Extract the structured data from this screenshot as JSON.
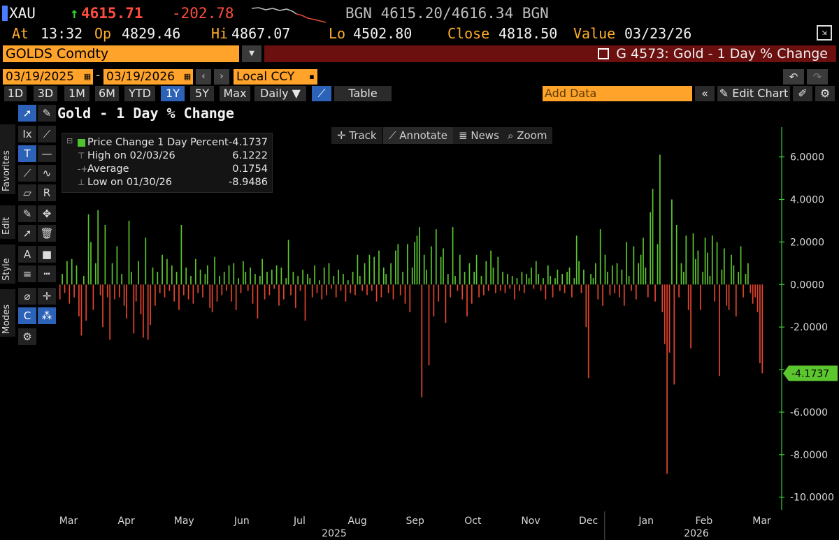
{
  "header": {
    "ticker": "XAU",
    "last": "4615.71",
    "change": "-202.78",
    "bid_ask": "BGN 4615.20/4616.34 BGN",
    "time_label": "At",
    "time": "13:32",
    "open_label": "Op",
    "open": "4829.46",
    "high_label": "Hi",
    "high": "4867.07",
    "low_label": "Lo",
    "low": "4502.80",
    "close_label": "Close",
    "close": "4818.50",
    "value_label": "Value",
    "value_date": "03/23/26"
  },
  "security": {
    "name": "GOLDS Comdty",
    "chart_title_bar": "G 4573: Gold - 1 Day % Change"
  },
  "range": {
    "start": "03/19/2025",
    "end": "03/19/2026",
    "currency": "Local CCY"
  },
  "periods": [
    {
      "label": "1D",
      "selected": false
    },
    {
      "label": "3D",
      "selected": false
    },
    {
      "label": "1M",
      "selected": false
    },
    {
      "label": "6M",
      "selected": false
    },
    {
      "label": "YTD",
      "selected": false
    },
    {
      "label": "1Y",
      "selected": true
    },
    {
      "label": "5Y",
      "selected": false
    },
    {
      "label": "Max",
      "selected": false
    }
  ],
  "frequency": "Daily",
  "table_label": "Table",
  "add_data_placeholder": "Add Data",
  "edit_chart_label": "Edit Chart",
  "side_tabs": [
    "Favorites",
    "Edit",
    "Style",
    "Modes"
  ],
  "chart_toolbar": [
    "Track",
    "Annotate",
    "News",
    "Zoom"
  ],
  "legend": {
    "series": {
      "label": "Price Change 1 Day Percent",
      "value": "-4.1737"
    },
    "high": {
      "label": "High on 02/03/26",
      "value": "6.1222"
    },
    "average": {
      "label": "Average",
      "value": "0.1754"
    },
    "low": {
      "label": "Low on 01/30/26",
      "value": "-8.9486"
    }
  },
  "colors": {
    "positive": "#5cc62f",
    "negative": "#e2452f",
    "accent": "#ffa32b",
    "last_value_tag": "#5cc62f"
  },
  "chart_data": {
    "type": "bar",
    "title": "Gold - 1 Day % Change",
    "x_axis": {
      "months": [
        "Mar",
        "Apr",
        "May",
        "Jun",
        "Jul",
        "Aug",
        "Sep",
        "Oct",
        "Nov",
        "Dec",
        "Jan",
        "Feb",
        "Mar"
      ],
      "years": [
        "2025",
        "2026"
      ]
    },
    "y_axis": {
      "ticks": [
        "6.0000",
        "4.0000",
        "2.0000",
        "0.0000",
        "-2.0000",
        "-4.0000",
        "-6.0000",
        "-8.0000",
        "-10.0000"
      ],
      "range": [
        -10.6,
        7.4
      ],
      "side": "right"
    },
    "last_value": "-4.1737",
    "values": [
      -0.7,
      0.5,
      -0.4,
      1.1,
      -0.9,
      1.2,
      -0.6,
      0.9,
      -1.5,
      -2.4,
      0.4,
      -1.7,
      3.3,
      2.0,
      -1.2,
      1.0,
      3.5,
      -0.5,
      -2.0,
      2.8,
      -0.6,
      -2.6,
      1.0,
      -0.7,
      1.8,
      -0.6,
      0.5,
      -1.0,
      -1.6,
      3.0,
      0.6,
      -2.3,
      -0.8,
      1.1,
      -1.4,
      -2.5,
      2.2,
      -2.6,
      -1.9,
      0.8,
      -1.0,
      0.6,
      -0.4,
      1.4,
      -0.6,
      1.2,
      -0.3,
      0.9,
      -0.8,
      0.6,
      -1.2,
      2.8,
      -0.5,
      0.8,
      -0.7,
      0.4,
      -0.9,
      1.2,
      -0.4,
      0.7,
      -0.6,
      0.5,
      0.9,
      -1.1,
      -1.3,
      1.3,
      -0.8,
      0.4,
      -0.5,
      0.6,
      -0.3,
      0.9,
      -0.8,
      1.0,
      -1.2,
      0.3,
      -0.4,
      1.1,
      0.6,
      -0.3,
      0.8,
      -0.9,
      0.5,
      -1.6,
      0.4,
      1.2,
      -0.7,
      0.6,
      -0.5,
      0.7,
      -0.2,
      0.9,
      -1.0,
      0.8,
      -0.7,
      0.3,
      2.1,
      -0.5,
      0.6,
      -1.1,
      0.4,
      -0.3,
      0.7,
      -1.7,
      0.5,
      0.3,
      -0.6,
      0.9,
      -0.4,
      0.2,
      -0.7,
      0.8,
      -0.5,
      1.0,
      -0.2,
      0.4,
      -0.6,
      0.7,
      -0.3,
      0.5,
      -0.8,
      0.2,
      -0.4,
      0.6,
      -0.5,
      1.4,
      0.4,
      -0.3,
      1.0,
      -0.5,
      1.4,
      -0.3,
      1.3,
      -0.8,
      1.6,
      -0.6,
      0.8,
      0.5,
      -0.4,
      1.0,
      -0.7,
      1.6,
      1.9,
      -0.5,
      0.6,
      -0.9,
      1.9,
      -1.3,
      0.8,
      2.0,
      2.3,
      2.7,
      -5.3,
      1.4,
      0.7,
      -3.8,
      1.8,
      -1.5,
      2.6,
      -0.8,
      1.3,
      1.7,
      -1.8,
      0.5,
      -0.6,
      2.7,
      0.4,
      -0.3,
      1.4,
      -0.7,
      0.6,
      -1.5,
      1.0,
      -0.9,
      0.6,
      1.4,
      -0.6,
      0.4,
      -0.5,
      1.1,
      -0.3,
      1.6,
      0.8,
      -0.4,
      1.3,
      -0.3,
      0.6,
      -0.4,
      0.5,
      -0.2,
      0.4,
      -0.7,
      0.3,
      -0.3,
      0.6,
      -0.4,
      0.5,
      0.3,
      0.8,
      -0.2,
      1.1,
      0.5,
      -0.3,
      0.3,
      -0.7,
      0.9,
      0.4,
      -0.6,
      0.3,
      0.7,
      -0.3,
      0.5,
      -0.4,
      0.6,
      0.8,
      -0.6,
      0.3,
      2.3,
      1.1,
      -0.4,
      0.7,
      -2.0,
      -4.4,
      0.5,
      0.3,
      1.0,
      -0.7,
      2.6,
      -1.0,
      1.4,
      0.6,
      -0.5,
      0.9,
      -0.4,
      1.0,
      -0.6,
      0.7,
      -1.0,
      2.0,
      0.4,
      -0.3,
      1.8,
      -0.7,
      1.0,
      1.4,
      2.2,
      0.8,
      -0.6,
      3.4,
      4.5,
      -0.8,
      1.9,
      6.1,
      -1.3,
      -2.8,
      -8.9,
      -3.2,
      4.0,
      -4.7,
      2.8,
      -0.6,
      1.0,
      0.6,
      2.3,
      -1.2,
      -3.0,
      2.4,
      1.2,
      1.6,
      -1.2,
      0.6,
      2.2,
      1.5,
      0.4,
      2.3,
      -0.8,
      2.0,
      -4.3,
      0.7,
      1.7,
      -1.0,
      -1.2,
      1.4,
      0.9,
      -1.5,
      0.6,
      1.8,
      -0.6,
      0.5,
      1.0,
      -0.4,
      -0.9,
      -0.6,
      -1.3,
      -3.7,
      -4.1737
    ]
  }
}
